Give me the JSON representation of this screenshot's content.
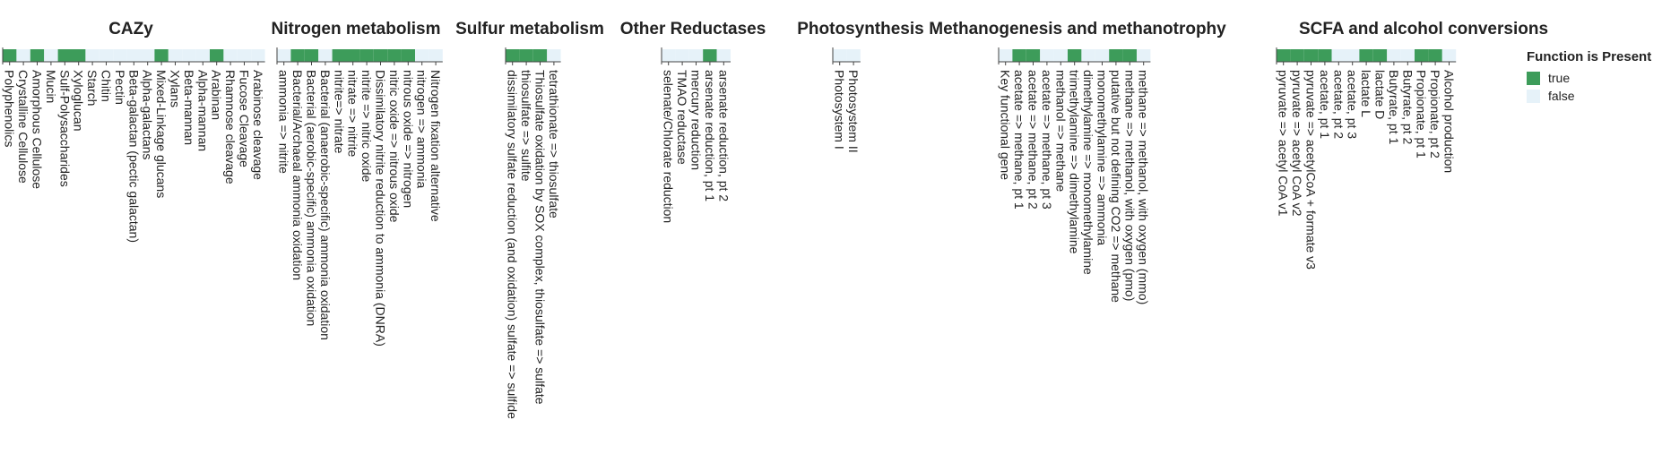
{
  "chart_data": {
    "type": "heatmap",
    "colors": {
      "true": "#3d9c5a",
      "false": "#e6f2f9",
      "axis": "#444444"
    },
    "legend": {
      "title": "Function is Present",
      "items": [
        {
          "label": "true",
          "key": "true"
        },
        {
          "label": "false",
          "key": "false"
        }
      ]
    },
    "panels": [
      {
        "title": "CAZy",
        "categories": [
          "Polyphenolics",
          "Crystalline Cellulose",
          "Amorphous Cellulose",
          "Mucin",
          "Sulf-Polysaccharides",
          "Xyloglucan",
          "Starch",
          "Chitin",
          "Pectin",
          "Beta-galactan (pectic galactan)",
          "Alpha-galactans",
          "Mixed-Linkage glucans",
          "Xylans",
          "Beta-mannan",
          "Alpha-mannan",
          "Arabinan",
          "Rhamnose cleavage",
          "Fucose Cleavage",
          "Arabinose cleavage"
        ],
        "values": [
          1,
          0,
          1,
          0,
          1,
          1,
          0,
          0,
          0,
          0,
          0,
          1,
          0,
          0,
          0,
          1,
          0,
          0,
          0
        ]
      },
      {
        "title": "Nitrogen metabolism",
        "categories": [
          "ammonia => nitrite",
          "Bacterial/Archaeal ammonia oxidation",
          "Bacterial (aerobic-specific) ammonia oxidation",
          "Bacterial (anaerobic-specific) ammonia oxidation",
          "nitrite=> nitrate",
          "nitrate => nitrite",
          "nitrite => nitric oxide",
          "Dissimilatory nitrite reduction to ammonia (DNRA)",
          "nitric oxide => nitrous oxide",
          "nitrous oxide => nitrogen",
          "nitrogen => ammonia",
          "Nitrogen fixation alternative"
        ],
        "values": [
          0,
          1,
          1,
          0,
          1,
          1,
          1,
          1,
          1,
          1,
          0,
          0
        ]
      },
      {
        "title": "Sulfur metabolism",
        "categories": [
          "dissimilatory sulfate reduction (and oxidation) sulfate => sulfide",
          "thiosulfate => sulfite",
          "Thiosulfate oxidation by SOX complex, thiosulfate => sulfate",
          "tetrathionate => thiosulfate"
        ],
        "values": [
          1,
          1,
          1,
          0
        ]
      },
      {
        "title": "Other Reductases",
        "categories": [
          "selenate/Chlorate reduction",
          "TMAO reductase",
          "mercury reduction",
          "arsenate reduction, pt 1",
          "arsenate reduction, pt 2"
        ],
        "values": [
          0,
          0,
          0,
          1,
          0
        ]
      },
      {
        "title": "Photosynthesis",
        "categories": [
          "Photosystem I",
          "Photosystem II"
        ],
        "values": [
          0,
          0
        ]
      },
      {
        "title": "Methanogenesis and methanotrophy",
        "categories": [
          "Key functional gene",
          "acetate => methane, pt 1",
          "acetate => methane, pt 2",
          "acetate => methane, pt 3",
          "methanol => methane",
          "trimethylamine => dimethylamine",
          "dimethylamine => monomethylamine",
          "monomethylamine => ammonia",
          "putative but not defining CO2 => methane",
          "methane => methanol, with oxygen (pmo)",
          "methane => methanol, with oxygen (mmo)"
        ],
        "values": [
          0,
          1,
          1,
          0,
          0,
          1,
          0,
          0,
          1,
          1,
          0
        ]
      },
      {
        "title": "SCFA and alcohol conversions",
        "categories": [
          "pyruvate => acetyl CoA v1",
          "pyruvate => acetyl CoA v2",
          "pyruvate => acetylCoA + formate v3",
          "acetate, pt 1",
          "acetate, pt 2",
          "acetate, pt 3",
          "lactate L",
          "lactate D",
          "Butyrate, pt 1",
          "Butyrate, pt 2",
          "Propionate, pt 1",
          "Propionate, pt 2",
          "Alcohol production"
        ],
        "values": [
          1,
          1,
          1,
          1,
          0,
          0,
          1,
          1,
          0,
          0,
          1,
          1,
          0
        ]
      }
    ]
  }
}
